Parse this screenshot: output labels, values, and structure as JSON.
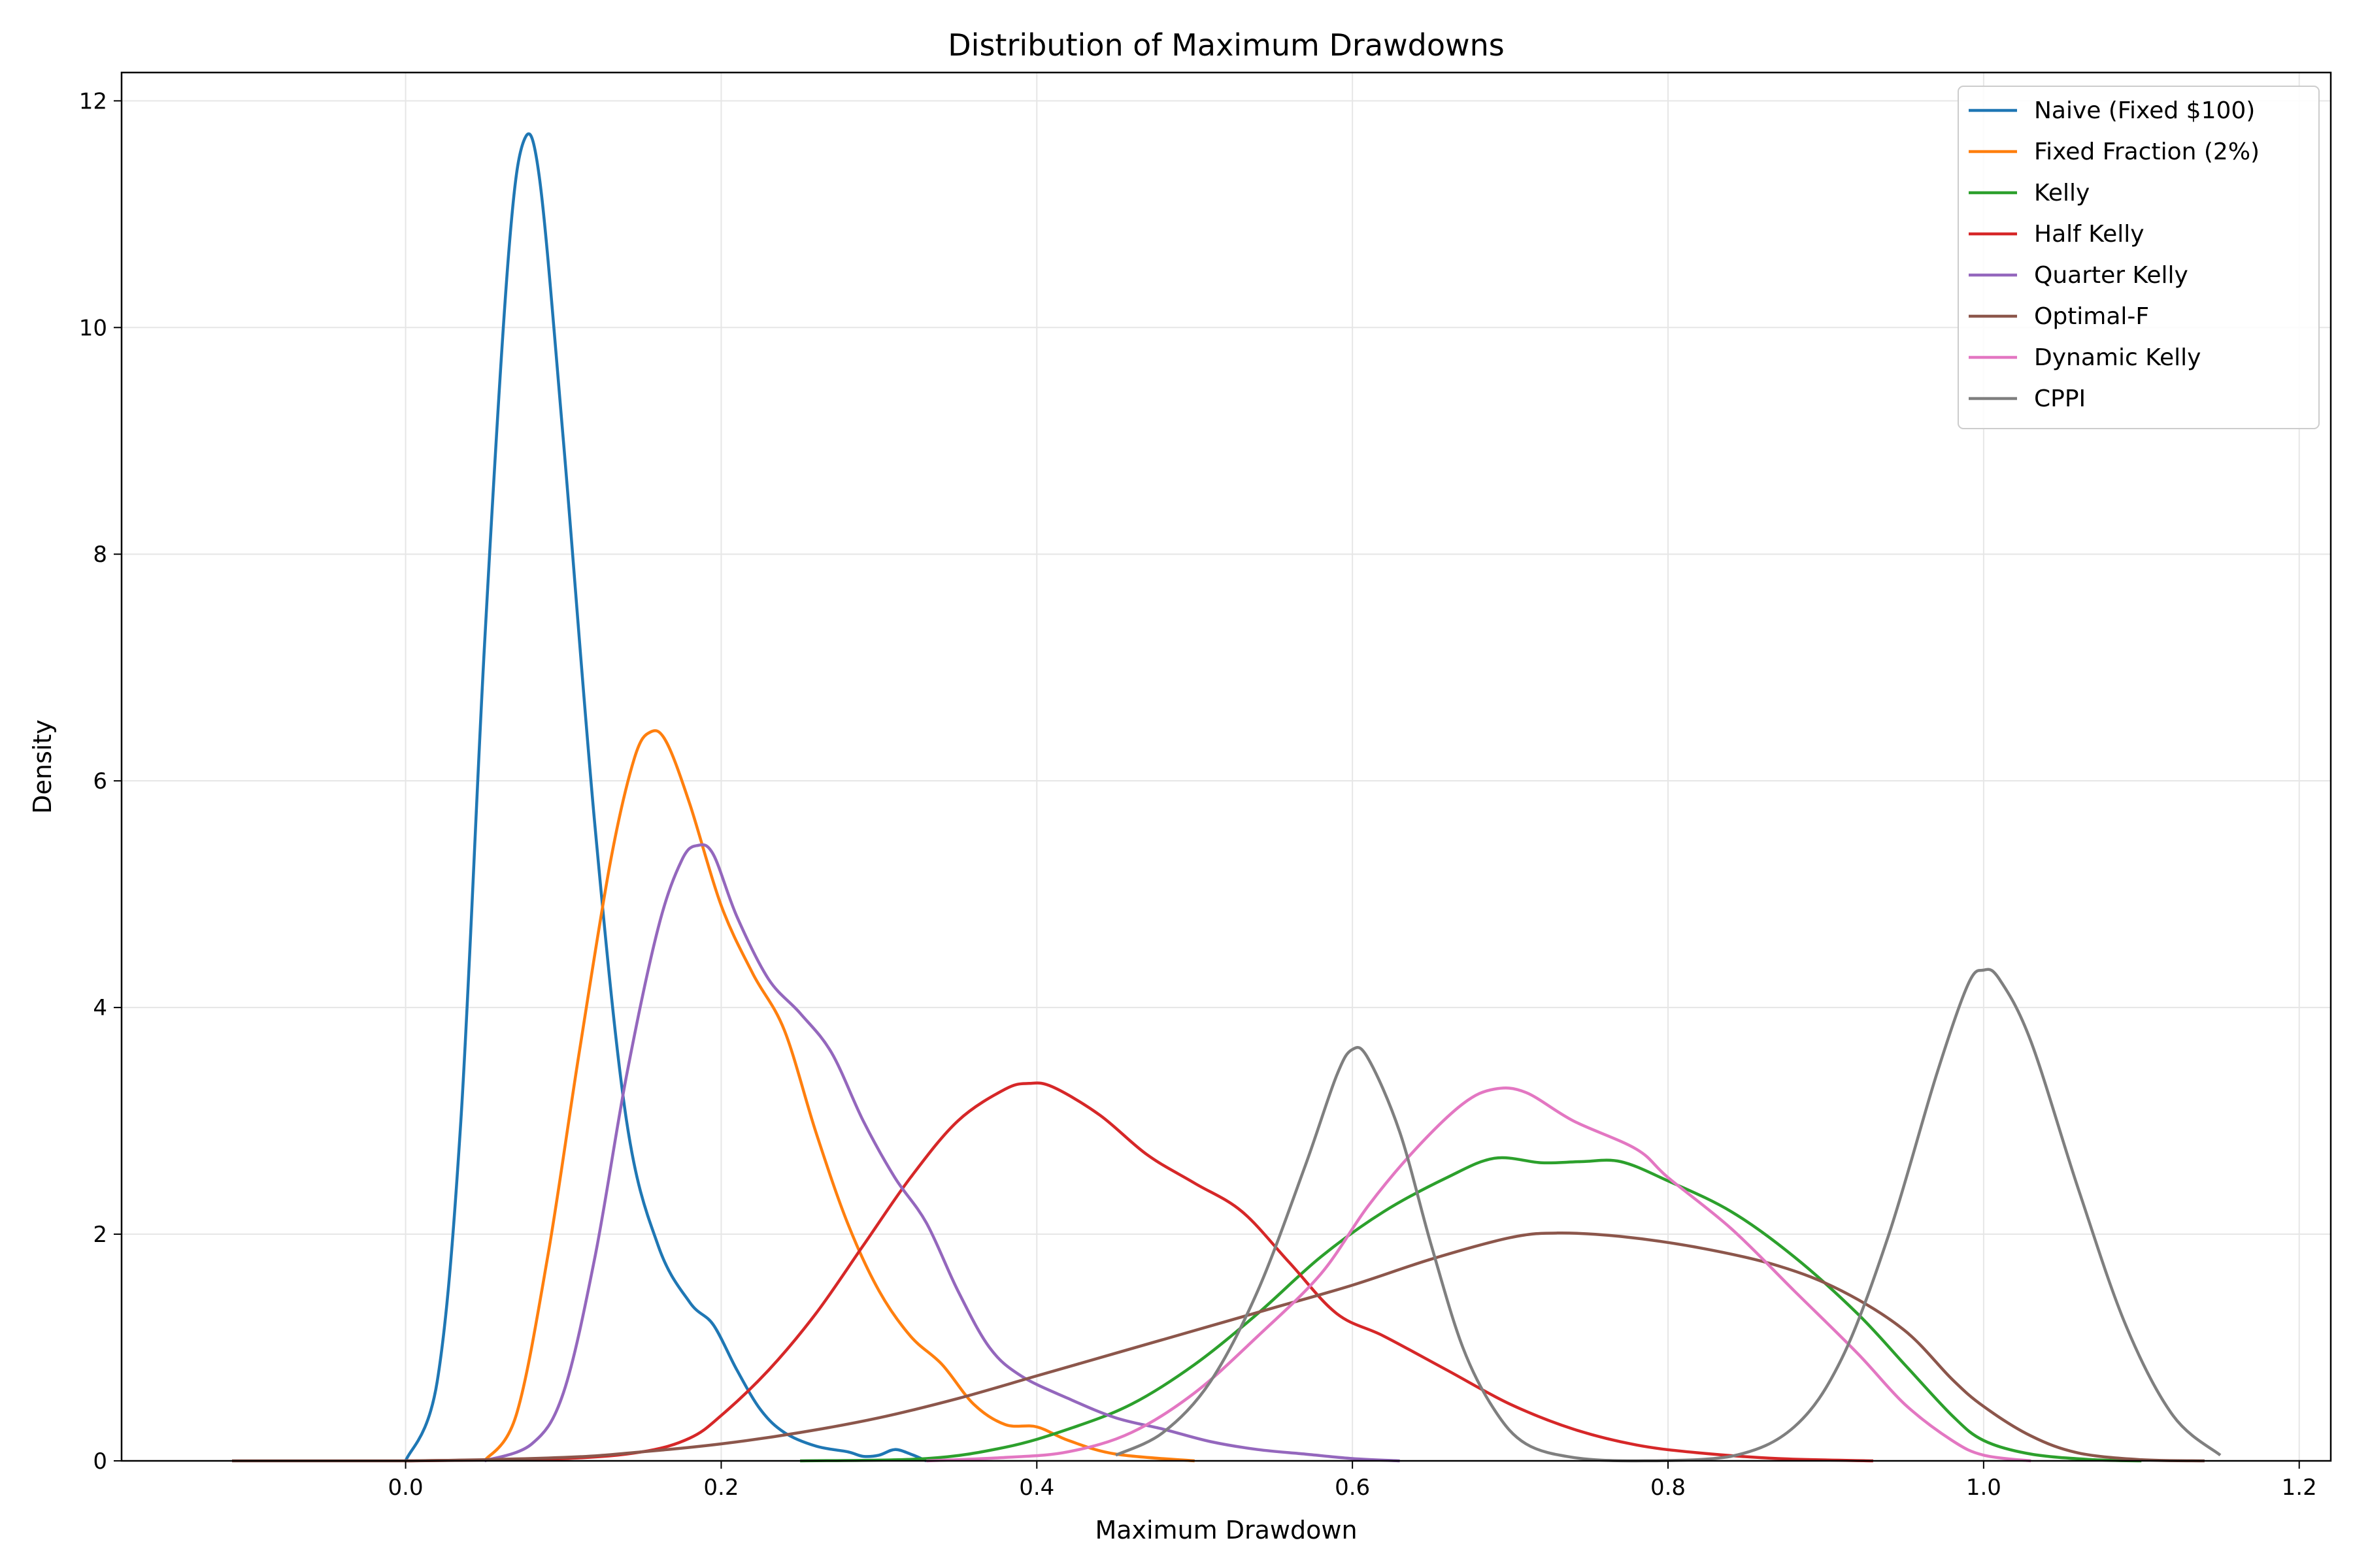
{
  "chart_data": {
    "type": "line",
    "title": "Distribution of Maximum Drawdowns",
    "xlabel": "Maximum Drawdown",
    "ylabel": "Density",
    "xlim": [
      -0.18,
      1.22
    ],
    "ylim": [
      0,
      12.25
    ],
    "x_ticks": [
      0.0,
      0.2,
      0.4,
      0.6,
      0.8,
      1.0,
      1.2
    ],
    "x_tick_labels": [
      "0.0",
      "0.2",
      "0.4",
      "0.6",
      "0.8",
      "1.0",
      "1.2"
    ],
    "y_ticks": [
      0,
      2,
      4,
      6,
      8,
      10,
      12
    ],
    "y_tick_labels": [
      "0",
      "2",
      "4",
      "6",
      "8",
      "10",
      "12"
    ],
    "grid": true,
    "legend_position": "top-right",
    "series": [
      {
        "name": "Naive (Fixed $100)",
        "color": "#1f77b4",
        "points": [
          [
            0.0,
            0.0
          ],
          [
            0.02,
            0.7
          ],
          [
            0.035,
            3.0
          ],
          [
            0.05,
            7.2
          ],
          [
            0.065,
            10.6
          ],
          [
            0.075,
            11.65
          ],
          [
            0.085,
            11.3
          ],
          [
            0.1,
            9.0
          ],
          [
            0.12,
            5.6
          ],
          [
            0.14,
            3.0
          ],
          [
            0.16,
            1.9
          ],
          [
            0.18,
            1.4
          ],
          [
            0.195,
            1.2
          ],
          [
            0.21,
            0.8
          ],
          [
            0.225,
            0.45
          ],
          [
            0.24,
            0.25
          ],
          [
            0.26,
            0.13
          ],
          [
            0.28,
            0.08
          ],
          [
            0.29,
            0.04
          ],
          [
            0.3,
            0.05
          ],
          [
            0.31,
            0.1
          ],
          [
            0.32,
            0.06
          ],
          [
            0.33,
            0.0
          ]
        ]
      },
      {
        "name": "Fixed Fraction (2%)",
        "color": "#ff7f0e",
        "points": [
          [
            0.05,
            0.0
          ],
          [
            0.07,
            0.4
          ],
          [
            0.09,
            1.8
          ],
          [
            0.11,
            3.6
          ],
          [
            0.13,
            5.3
          ],
          [
            0.145,
            6.2
          ],
          [
            0.155,
            6.43
          ],
          [
            0.165,
            6.35
          ],
          [
            0.18,
            5.8
          ],
          [
            0.2,
            4.9
          ],
          [
            0.22,
            4.3
          ],
          [
            0.24,
            3.8
          ],
          [
            0.26,
            2.9
          ],
          [
            0.28,
            2.1
          ],
          [
            0.3,
            1.5
          ],
          [
            0.32,
            1.1
          ],
          [
            0.34,
            0.85
          ],
          [
            0.36,
            0.5
          ],
          [
            0.38,
            0.32
          ],
          [
            0.4,
            0.3
          ],
          [
            0.42,
            0.18
          ],
          [
            0.45,
            0.06
          ],
          [
            0.5,
            0.0
          ]
        ]
      },
      {
        "name": "Kelly",
        "color": "#2ca02c",
        "points": [
          [
            0.25,
            0.0
          ],
          [
            0.33,
            0.02
          ],
          [
            0.38,
            0.12
          ],
          [
            0.42,
            0.28
          ],
          [
            0.46,
            0.5
          ],
          [
            0.5,
            0.85
          ],
          [
            0.54,
            1.3
          ],
          [
            0.58,
            1.8
          ],
          [
            0.62,
            2.2
          ],
          [
            0.66,
            2.5
          ],
          [
            0.69,
            2.67
          ],
          [
            0.72,
            2.63
          ],
          [
            0.745,
            2.64
          ],
          [
            0.77,
            2.64
          ],
          [
            0.8,
            2.47
          ],
          [
            0.84,
            2.2
          ],
          [
            0.88,
            1.8
          ],
          [
            0.92,
            1.3
          ],
          [
            0.95,
            0.85
          ],
          [
            0.98,
            0.4
          ],
          [
            1.0,
            0.18
          ],
          [
            1.03,
            0.06
          ],
          [
            1.07,
            0.01
          ],
          [
            1.1,
            0.0
          ]
        ]
      },
      {
        "name": "Half Kelly",
        "color": "#d62728",
        "points": [
          [
            0.0,
            0.0
          ],
          [
            0.1,
            0.02
          ],
          [
            0.15,
            0.08
          ],
          [
            0.18,
            0.2
          ],
          [
            0.2,
            0.4
          ],
          [
            0.23,
            0.8
          ],
          [
            0.26,
            1.3
          ],
          [
            0.29,
            1.9
          ],
          [
            0.32,
            2.5
          ],
          [
            0.35,
            3.0
          ],
          [
            0.38,
            3.28
          ],
          [
            0.395,
            3.33
          ],
          [
            0.41,
            3.3
          ],
          [
            0.44,
            3.05
          ],
          [
            0.47,
            2.7
          ],
          [
            0.5,
            2.45
          ],
          [
            0.53,
            2.2
          ],
          [
            0.56,
            1.75
          ],
          [
            0.59,
            1.3
          ],
          [
            0.62,
            1.1
          ],
          [
            0.66,
            0.8
          ],
          [
            0.7,
            0.5
          ],
          [
            0.74,
            0.28
          ],
          [
            0.78,
            0.14
          ],
          [
            0.82,
            0.07
          ],
          [
            0.87,
            0.02
          ],
          [
            0.93,
            0.0
          ]
        ]
      },
      {
        "name": "Quarter Kelly",
        "color": "#9467bd",
        "points": [
          [
            0.05,
            0.0
          ],
          [
            0.08,
            0.15
          ],
          [
            0.1,
            0.6
          ],
          [
            0.12,
            1.8
          ],
          [
            0.14,
            3.4
          ],
          [
            0.16,
            4.7
          ],
          [
            0.175,
            5.3
          ],
          [
            0.185,
            5.43
          ],
          [
            0.195,
            5.35
          ],
          [
            0.21,
            4.8
          ],
          [
            0.23,
            4.25
          ],
          [
            0.25,
            3.95
          ],
          [
            0.27,
            3.6
          ],
          [
            0.29,
            3.0
          ],
          [
            0.31,
            2.5
          ],
          [
            0.33,
            2.1
          ],
          [
            0.35,
            1.5
          ],
          [
            0.37,
            1.0
          ],
          [
            0.39,
            0.75
          ],
          [
            0.42,
            0.55
          ],
          [
            0.45,
            0.38
          ],
          [
            0.48,
            0.28
          ],
          [
            0.51,
            0.17
          ],
          [
            0.54,
            0.1
          ],
          [
            0.57,
            0.06
          ],
          [
            0.6,
            0.02
          ],
          [
            0.63,
            0.0
          ]
        ]
      },
      {
        "name": "Optimal-F",
        "color": "#8c564b",
        "points": [
          [
            -0.11,
            0.0
          ],
          [
            0.0,
            0.0
          ],
          [
            0.1,
            0.03
          ],
          [
            0.15,
            0.08
          ],
          [
            0.2,
            0.15
          ],
          [
            0.25,
            0.25
          ],
          [
            0.3,
            0.38
          ],
          [
            0.35,
            0.55
          ],
          [
            0.4,
            0.75
          ],
          [
            0.45,
            0.95
          ],
          [
            0.5,
            1.15
          ],
          [
            0.55,
            1.35
          ],
          [
            0.6,
            1.55
          ],
          [
            0.65,
            1.78
          ],
          [
            0.7,
            1.97
          ],
          [
            0.73,
            2.01
          ],
          [
            0.77,
            1.98
          ],
          [
            0.82,
            1.88
          ],
          [
            0.87,
            1.72
          ],
          [
            0.91,
            1.5
          ],
          [
            0.95,
            1.15
          ],
          [
            0.98,
            0.72
          ],
          [
            1.0,
            0.48
          ],
          [
            1.03,
            0.22
          ],
          [
            1.06,
            0.07
          ],
          [
            1.1,
            0.01
          ],
          [
            1.14,
            0.0
          ]
        ]
      },
      {
        "name": "Dynamic Kelly",
        "color": "#e377c2",
        "points": [
          [
            0.33,
            0.0
          ],
          [
            0.38,
            0.03
          ],
          [
            0.42,
            0.08
          ],
          [
            0.46,
            0.25
          ],
          [
            0.5,
            0.6
          ],
          [
            0.54,
            1.1
          ],
          [
            0.58,
            1.65
          ],
          [
            0.61,
            2.25
          ],
          [
            0.64,
            2.75
          ],
          [
            0.67,
            3.15
          ],
          [
            0.69,
            3.28
          ],
          [
            0.71,
            3.25
          ],
          [
            0.74,
            3.0
          ],
          [
            0.78,
            2.75
          ],
          [
            0.8,
            2.5
          ],
          [
            0.84,
            2.05
          ],
          [
            0.88,
            1.5
          ],
          [
            0.92,
            0.95
          ],
          [
            0.95,
            0.5
          ],
          [
            0.98,
            0.18
          ],
          [
            1.0,
            0.05
          ],
          [
            1.03,
            0.0
          ]
        ]
      },
      {
        "name": "CPPI",
        "color": "#7f7f7f",
        "points": [
          [
            0.45,
            0.05
          ],
          [
            0.48,
            0.25
          ],
          [
            0.51,
            0.7
          ],
          [
            0.54,
            1.5
          ],
          [
            0.57,
            2.6
          ],
          [
            0.59,
            3.4
          ],
          [
            0.6,
            3.63
          ],
          [
            0.61,
            3.55
          ],
          [
            0.63,
            2.9
          ],
          [
            0.65,
            1.9
          ],
          [
            0.67,
            1.0
          ],
          [
            0.69,
            0.45
          ],
          [
            0.71,
            0.15
          ],
          [
            0.74,
            0.03
          ],
          [
            0.78,
            0.0
          ],
          [
            0.84,
            0.04
          ],
          [
            0.88,
            0.3
          ],
          [
            0.91,
            0.9
          ],
          [
            0.94,
            2.0
          ],
          [
            0.97,
            3.4
          ],
          [
            0.99,
            4.2
          ],
          [
            1.0,
            4.33
          ],
          [
            1.01,
            4.25
          ],
          [
            1.03,
            3.7
          ],
          [
            1.06,
            2.4
          ],
          [
            1.09,
            1.2
          ],
          [
            1.12,
            0.4
          ],
          [
            1.15,
            0.05
          ]
        ]
      }
    ]
  }
}
